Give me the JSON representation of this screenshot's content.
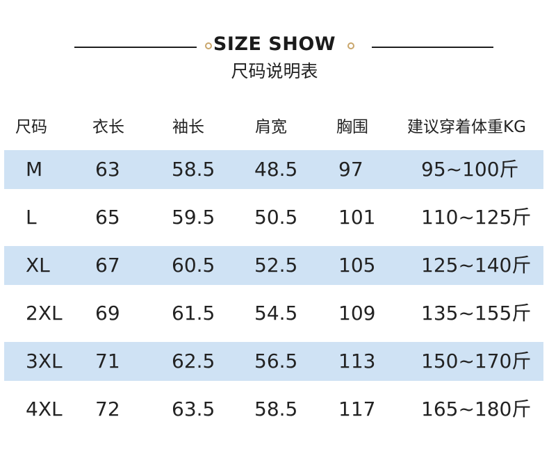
{
  "header": {
    "title": "SIZE SHOW",
    "subtitle": "尺码说明表"
  },
  "colors": {
    "accent_ring": "#c9a66b",
    "row_band": "#cfe2f4",
    "rule": "#1e1e1e"
  },
  "table": {
    "columns": [
      "尺码",
      "衣长",
      "袖长",
      "肩宽",
      "胸围",
      "建议穿着体重KG"
    ],
    "rows": [
      [
        "M",
        "63",
        "58.5",
        "48.5",
        "97",
        "95~100斤"
      ],
      [
        "L",
        "65",
        "59.5",
        "50.5",
        "101",
        "110~125斤"
      ],
      [
        "XL",
        "67",
        "60.5",
        "52.5",
        "105",
        "125~140斤"
      ],
      [
        "2XL",
        "69",
        "61.5",
        "54.5",
        "109",
        "135~155斤"
      ],
      [
        "3XL",
        "71",
        "62.5",
        "56.5",
        "113",
        "150~170斤"
      ],
      [
        "4XL",
        "72",
        "63.5",
        "58.5",
        "117",
        "165~180斤"
      ]
    ]
  }
}
